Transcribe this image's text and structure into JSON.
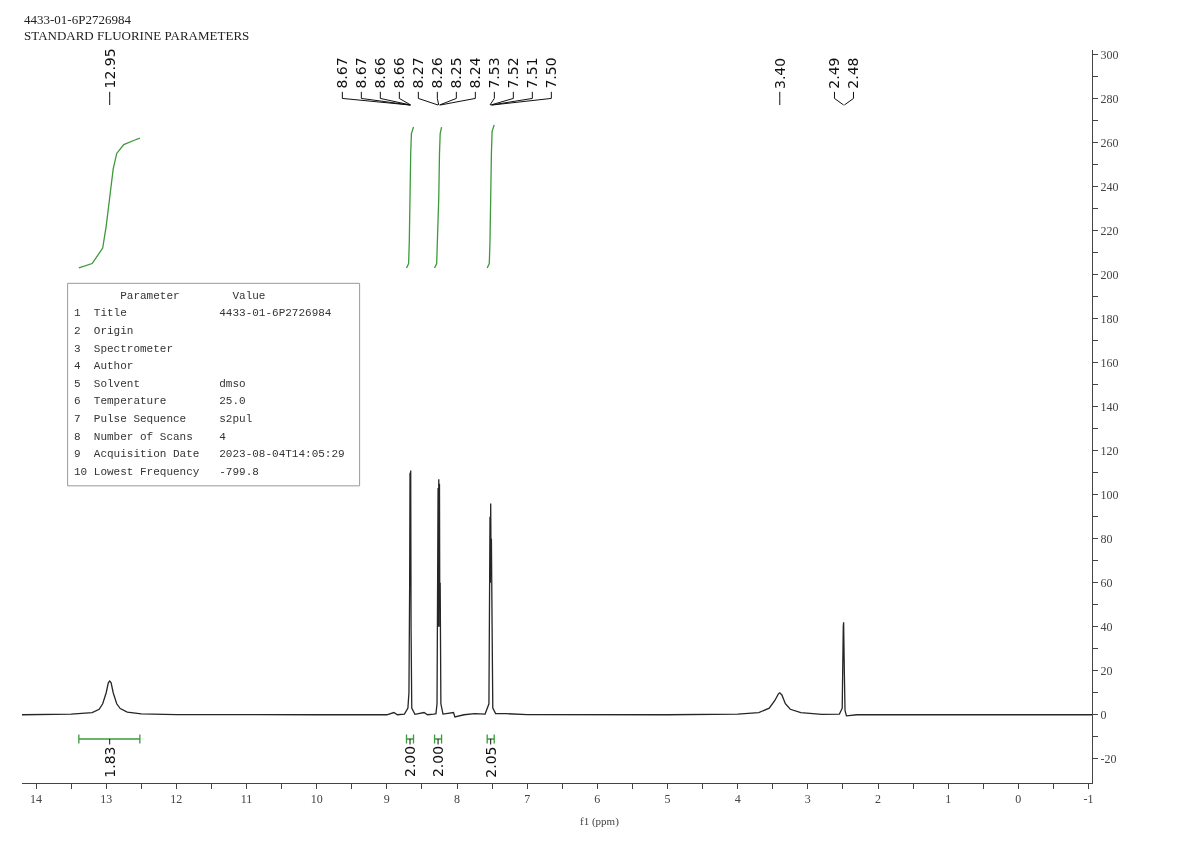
{
  "chart_data": {
    "type": "line",
    "title": "4433-01-6P2726984",
    "subtitle": "STANDARD FLUORINE PARAMETERS",
    "xlabel": "f1 (ppm)",
    "xlim": [
      14.2,
      -1.05
    ],
    "ylim": [
      -31,
      302
    ],
    "xticks": [
      14,
      {
        "value": 13.5,
        "label": null
      },
      13,
      {
        "value": 12.5,
        "label": null
      },
      12,
      {
        "value": 11.5,
        "label": null
      },
      11,
      {
        "value": 10.5,
        "label": null
      },
      10,
      {
        "value": 9.5,
        "label": null
      },
      9,
      {
        "value": 8.5,
        "label": null
      },
      8,
      {
        "value": 7.5,
        "label": null
      },
      7,
      {
        "value": 6.5,
        "label": null
      },
      6,
      {
        "value": 5.5,
        "label": null
      },
      5,
      {
        "value": 4.5,
        "label": null
      },
      4,
      {
        "value": 3.5,
        "label": null
      },
      3,
      {
        "value": 2.5,
        "label": null
      },
      2,
      {
        "value": 1.5,
        "label": null
      },
      1,
      {
        "value": 0.5,
        "label": null
      },
      0,
      {
        "value": -0.5,
        "label": null
      },
      -1
    ],
    "yticks": [
      300,
      {
        "value": 290,
        "label": null
      },
      280,
      {
        "value": 270,
        "label": null
      },
      260,
      {
        "value": 250,
        "label": null
      },
      240,
      {
        "value": 230,
        "label": null
      },
      220,
      {
        "value": 210,
        "label": null
      },
      200,
      {
        "value": 190,
        "label": null
      },
      180,
      {
        "value": 170,
        "label": null
      },
      160,
      {
        "value": 150,
        "label": null
      },
      140,
      {
        "value": 130,
        "label": null
      },
      120,
      {
        "value": 110,
        "label": null
      },
      100,
      {
        "value": 90,
        "label": null
      },
      80,
      {
        "value": 70,
        "label": null
      },
      60,
      {
        "value": 50,
        "label": null
      },
      40,
      {
        "value": 30,
        "label": null
      },
      20,
      {
        "value": 10,
        "label": null
      },
      0,
      {
        "value": -10,
        "label": null
      },
      -20
    ],
    "series": [
      {
        "color": "#262626",
        "x": [
          14.2,
          13.5,
          13.2,
          13.1,
          13.05,
          13.0,
          12.97,
          12.95,
          12.93,
          12.9,
          12.85,
          12.8,
          12.7,
          12.5,
          12.0,
          10.0,
          9.0,
          8.9,
          8.85,
          8.75,
          8.7,
          8.685,
          8.675,
          8.67,
          8.667,
          8.663,
          8.66,
          8.655,
          8.645,
          8.6,
          8.47,
          8.42,
          8.33,
          8.3,
          8.285,
          8.27,
          8.265,
          8.26,
          8.255,
          8.25,
          8.245,
          8.24,
          8.23,
          8.2,
          8.05,
          8.03,
          7.9,
          7.75,
          7.6,
          7.545,
          7.53,
          7.525,
          7.52,
          7.515,
          7.51,
          7.505,
          7.5,
          7.49,
          7.45,
          7.3,
          7.0,
          5.0,
          4.0,
          3.7,
          3.55,
          3.47,
          3.42,
          3.4,
          3.37,
          3.32,
          3.25,
          3.1,
          2.8,
          2.55,
          2.51,
          2.495,
          2.49,
          2.48,
          2.47,
          2.45,
          2.3,
          0,
          -1.05
        ],
        "values": [
          0,
          0.3,
          1,
          2.5,
          5,
          10,
          14.5,
          15.3,
          14.5,
          10,
          5,
          2.8,
          1.2,
          0.4,
          0.1,
          0,
          0,
          1,
          0,
          0.3,
          3,
          10,
          60,
          110,
          70,
          80,
          111,
          40,
          3,
          0.2,
          1,
          0,
          0.3,
          0.5,
          5,
          103,
          40,
          107,
          50,
          105,
          40,
          60,
          5,
          0.3,
          1,
          -1,
          0,
          0.5,
          0.3,
          5,
          90,
          60,
          96,
          70,
          80,
          60,
          40,
          3,
          0.5,
          0.5,
          0.1,
          0,
          0.3,
          1,
          3,
          6.5,
          9.5,
          10,
          9,
          5,
          2.5,
          1,
          0.2,
          0.3,
          3,
          40,
          42,
          20,
          2,
          -0.5,
          0,
          0,
          0
        ]
      },
      {
        "color": "#3c9a3c",
        "x": [
          13.39,
          13.2,
          13.05,
          13.0,
          12.95,
          12.9,
          12.85,
          12.75,
          12.6,
          12.52
        ],
        "values": [
          203,
          205,
          212,
          222,
          235,
          248,
          255,
          259,
          261,
          262
        ]
      },
      {
        "color": "#3c9a3c",
        "x": [
          8.72,
          8.69,
          8.68,
          8.67,
          8.66,
          8.65,
          8.62
        ],
        "values": [
          203,
          205,
          215,
          235,
          255,
          264,
          267
        ]
      },
      {
        "color": "#3c9a3c",
        "x": [
          8.32,
          8.29,
          8.28,
          8.26,
          8.25,
          8.24,
          8.22
        ],
        "values": [
          203,
          205,
          215,
          235,
          255,
          264,
          267
        ]
      },
      {
        "color": "#3c9a3c",
        "x": [
          7.57,
          7.54,
          7.53,
          7.52,
          7.51,
          7.5,
          7.47
        ],
        "values": [
          203,
          205,
          215,
          235,
          255,
          265,
          268
        ]
      },
      {
        "color": "#3c9a3c",
        "x": [
          13.39,
          13.39,
          13.39,
          12.52,
          12.52,
          12.52
        ],
        "values": [
          -9,
          -13,
          -11,
          -11,
          -9,
          -13
        ]
      },
      {
        "color": "#3c9a3c",
        "x": [
          8.72,
          8.72,
          8.72,
          8.62,
          8.62,
          8.62
        ],
        "values": [
          -9,
          -13,
          -11,
          -11,
          -9,
          -13
        ]
      },
      {
        "color": "#3c9a3c",
        "x": [
          8.32,
          8.32,
          8.32,
          8.22,
          8.22,
          8.22
        ],
        "values": [
          -9,
          -13,
          -11,
          -11,
          -9,
          -13
        ]
      },
      {
        "color": "#3c9a3c",
        "x": [
          7.57,
          7.57,
          7.57,
          7.47,
          7.47,
          7.47
        ],
        "values": [
          -9,
          -13,
          -11,
          -11,
          -9,
          -13
        ]
      }
    ],
    "annotations": [
      "12.95",
      "8.67",
      "8.67",
      "8.66",
      "8.66",
      "8.27",
      "8.26",
      "8.25",
      "8.24",
      "7.53",
      "7.52",
      "7.51",
      "7.50",
      "3.40",
      "2.49",
      "2.48",
      {
        "text": "1.83",
        "x": 12.95,
        "y": -11
      },
      {
        "text": "2.00",
        "x": 8.67,
        "y": -11
      },
      {
        "text": "2.00",
        "x": 8.27,
        "y": -11
      },
      {
        "text": "2.05",
        "x": 7.52,
        "y": -11
      },
      "       Parameter        Value",
      "1  Title              4433-01-6P2726984",
      "2  Origin",
      "3  Spectrometer",
      "4  Author",
      "5  Solvent            dmso",
      "6  Temperature        25.0",
      "7  Pulse Sequence     s2pul",
      "8  Number of Scans    4",
      "9  Acquisition Date   2023-08-04T14:05:29",
      "10 Lowest Frequency   -799.8"
    ]
  }
}
